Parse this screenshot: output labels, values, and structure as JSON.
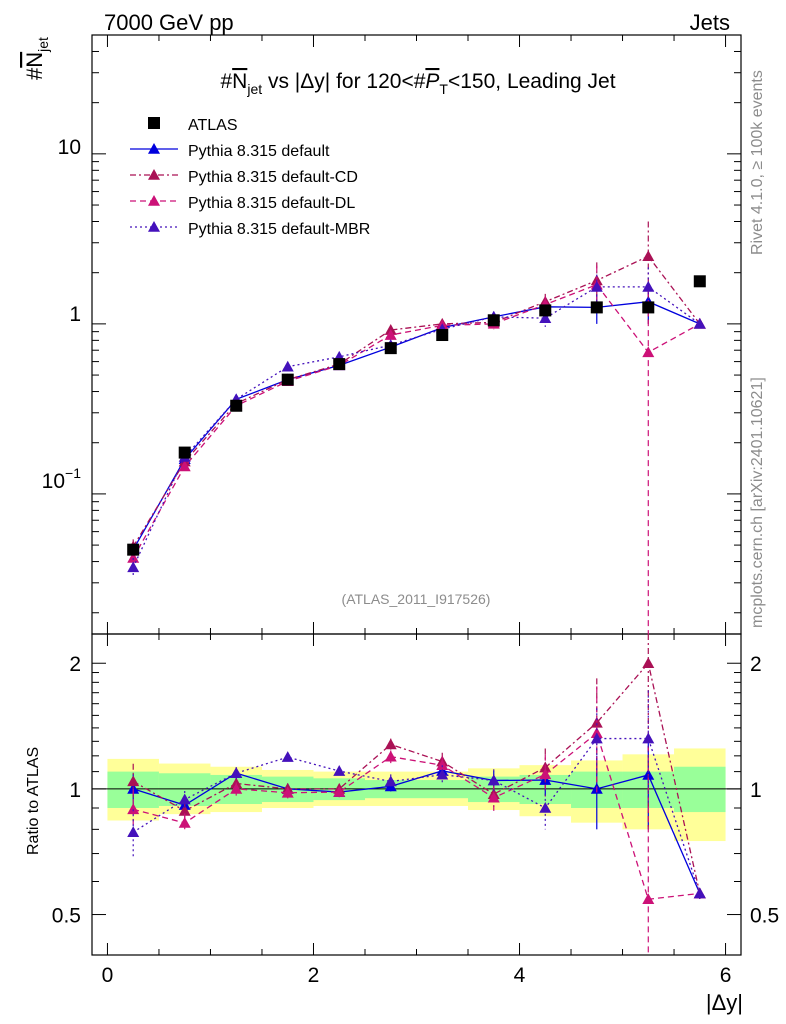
{
  "header": {
    "left": "7000 GeV pp",
    "right": "Jets"
  },
  "side_labels": {
    "rivet": "Rivet 4.1.0, ≥ 100k events",
    "mcplots": "mcplots.cern.ch [arXiv:2401.10621]"
  },
  "colors": {
    "data": "#000000",
    "default": "#0000dd",
    "cd": "#aa1155",
    "dl": "#cc1177",
    "mbr": "#4411bb",
    "band_inner": "#99ff99",
    "band_outer": "#ffff99"
  },
  "chart_data": {
    "type": "line",
    "title": "#N_jet vs |Δy| for 120<#P_T<150, Leading Jet",
    "title_parts": {
      "pre": "#",
      "n": "N",
      "n_sub": "jet",
      "mid": " vs |Δy| for 120<#",
      "p": "P",
      "p_sub": "T",
      "post": "<150, Leading Jet"
    },
    "ylabel": {
      "hash": "#",
      "n": "N",
      "sub": "jet"
    },
    "xlabel": "|Δy|",
    "ratio_ylabel": "Ratio to ATLAS",
    "watermark": "(ATLAS_2011_I917526)",
    "xlim": [
      -0.15,
      6.15
    ],
    "ylim_main": [
      0.015,
      50
    ],
    "ylim_ratio": [
      0.4,
      2.35
    ],
    "x_ticks": [
      0,
      2,
      4,
      6
    ],
    "x_tick_labels": [
      "0",
      "2",
      "4",
      "6"
    ],
    "main_y_ticks": [
      0.1,
      1,
      10
    ],
    "main_y_tick_labels": {
      "base": "10",
      "exp": "−1",
      "one": "1",
      "ten": "10"
    },
    "ratio_y_ticks": [
      0.5,
      1,
      2
    ],
    "ratio_y_tick_labels": [
      "0.5",
      "1",
      "2"
    ],
    "x": [
      0.25,
      0.75,
      1.25,
      1.75,
      2.25,
      2.75,
      3.25,
      3.75,
      4.25,
      4.75,
      5.25,
      5.75
    ],
    "data": {
      "name": "ATLAS",
      "values": [
        0.047,
        0.175,
        0.33,
        0.47,
        0.58,
        0.72,
        0.86,
        1.05,
        1.2,
        1.25,
        1.25,
        1.78
      ],
      "band_inner": [
        [
          0.9,
          1.1
        ],
        [
          0.91,
          1.09
        ],
        [
          0.92,
          1.08
        ],
        [
          0.93,
          1.07
        ],
        [
          0.94,
          1.06
        ],
        [
          0.95,
          1.05
        ],
        [
          0.95,
          1.05
        ],
        [
          0.93,
          1.07
        ],
        [
          0.92,
          1.08
        ],
        [
          0.9,
          1.1
        ],
        [
          0.9,
          1.1
        ],
        [
          0.88,
          1.13
        ]
      ],
      "band_outer": [
        [
          0.84,
          1.18
        ],
        [
          0.87,
          1.15
        ],
        [
          0.88,
          1.13
        ],
        [
          0.9,
          1.11
        ],
        [
          0.91,
          1.1
        ],
        [
          0.91,
          1.1
        ],
        [
          0.91,
          1.1
        ],
        [
          0.89,
          1.12
        ],
        [
          0.86,
          1.14
        ],
        [
          0.83,
          1.17
        ],
        [
          0.8,
          1.21
        ],
        [
          0.75,
          1.25
        ]
      ]
    },
    "series": [
      {
        "name": "Pythia 8.315 default",
        "key": "default",
        "dash": "",
        "values": [
          0.047,
          0.16,
          0.36,
          0.47,
          0.57,
          0.73,
          0.95,
          1.1,
          1.26,
          1.25,
          1.35,
          1.0
        ],
        "errors": [
          0.004,
          0.007,
          0.01,
          0.012,
          0.014,
          0.02,
          0.04,
          0.06,
          0.1,
          0.25,
          0.35,
          0.03
        ]
      },
      {
        "name": "Pythia 8.315 default-CD",
        "key": "cd",
        "dash": "6,3,2,3",
        "values": [
          0.049,
          0.155,
          0.34,
          0.47,
          0.58,
          0.92,
          1.0,
          1.02,
          1.35,
          1.8,
          2.5,
          1.0
        ],
        "errors": [
          0.005,
          0.008,
          0.012,
          0.014,
          0.016,
          0.03,
          0.05,
          0.07,
          0.15,
          0.5,
          1.5,
          0.03
        ]
      },
      {
        "name": "Pythia 8.315 default-DL",
        "key": "dl",
        "dash": "6,4",
        "values": [
          0.042,
          0.145,
          0.33,
          0.46,
          0.57,
          0.86,
          0.98,
          1.0,
          1.3,
          1.7,
          0.68,
          1.0
        ],
        "errors": [
          0.005,
          0.008,
          0.012,
          0.014,
          0.016,
          0.03,
          0.05,
          0.07,
          0.15,
          0.5,
          0.9,
          0.03
        ]
      },
      {
        "name": "Pythia 8.315 default-MBR",
        "key": "mbr",
        "dash": "2,3",
        "values": [
          0.037,
          0.165,
          0.36,
          0.56,
          0.64,
          0.75,
          0.93,
          1.1,
          1.08,
          1.65,
          1.65,
          1.0
        ],
        "errors": [
          0.005,
          0.008,
          0.012,
          0.014,
          0.016,
          0.03,
          0.05,
          0.07,
          0.12,
          0.3,
          0.5,
          0.03
        ]
      }
    ]
  }
}
